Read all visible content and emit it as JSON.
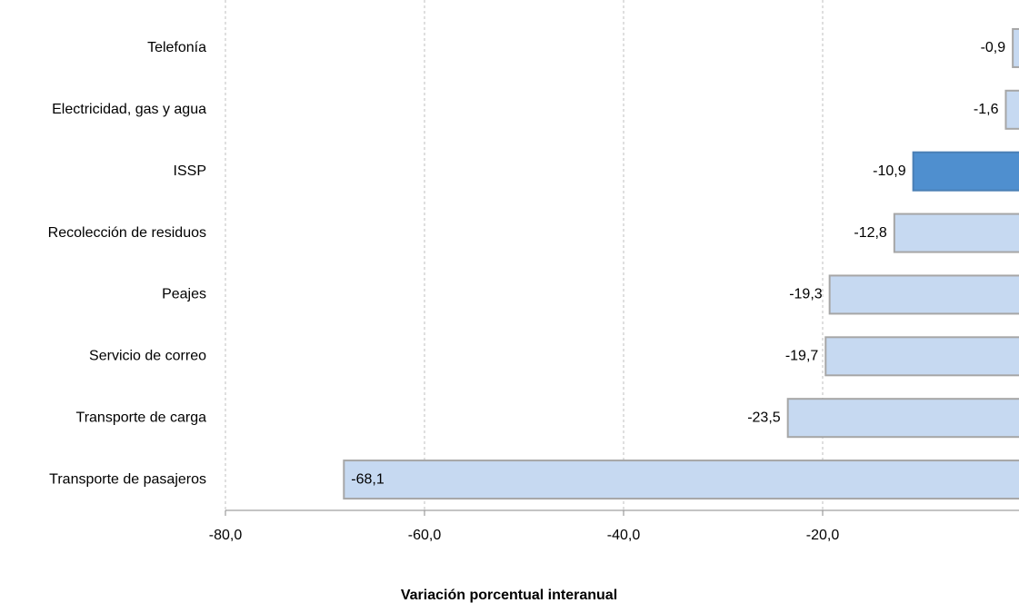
{
  "chart_data": {
    "type": "bar",
    "orientation": "horizontal",
    "x_label": "Variación porcentual interanual",
    "categories": [
      "Telefonía",
      "Electricidad, gas y agua",
      "ISSP",
      "Recolección de residuos",
      "Peajes",
      "Servicio de correo",
      "Transporte de carga",
      "Transporte de pasajeros"
    ],
    "values": [
      -0.9,
      -1.6,
      -10.9,
      -12.8,
      -19.3,
      -19.7,
      -23.5,
      -68.1
    ],
    "value_labels": [
      "-0,9",
      "-1,6",
      "-10,9",
      "-12,8",
      "-19,3",
      "-19,7",
      "-23,5",
      "-68,1"
    ],
    "colors": [
      "#c6d9f1",
      "#c6d9f1",
      "#4f8fcf",
      "#c6d9f1",
      "#c6d9f1",
      "#c6d9f1",
      "#c6d9f1",
      "#c6d9f1"
    ],
    "xlim": [
      -80,
      0
    ],
    "xticks": [
      {
        "value": -80,
        "label": "-80,0"
      },
      {
        "value": -60,
        "label": "-60,0"
      },
      {
        "value": -40,
        "label": "-40,0"
      },
      {
        "value": -20,
        "label": "-20,0"
      },
      {
        "value": 0,
        "label": "-"
      }
    ],
    "grid": true
  }
}
